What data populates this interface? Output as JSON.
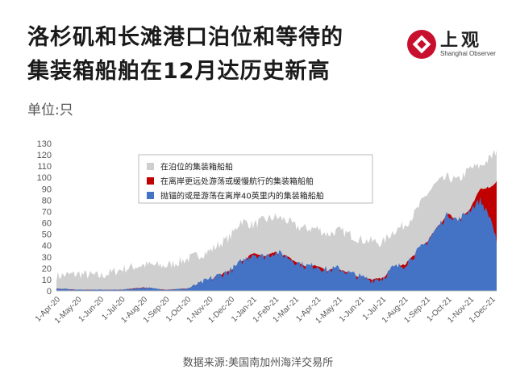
{
  "title_line1": "洛杉矶和长滩港口泊位和等待的",
  "title_line2": "集装箱船舶在12月达历史新高",
  "unit_label": "单位:只",
  "logo": {
    "cn": "上观",
    "en": "Shanghai Observer"
  },
  "source": "数据来源:美国南加州海洋交易所",
  "colors": {
    "berth": "#cfcfcf",
    "offshore": "#c00000",
    "anchored": "#4472c4"
  },
  "chart_data": {
    "type": "area",
    "title": "",
    "xlabel": "",
    "ylabel": "单位:只",
    "ylim": [
      0,
      130
    ],
    "yticks": [
      0,
      10,
      20,
      30,
      40,
      50,
      60,
      70,
      80,
      90,
      100,
      110,
      120,
      130
    ],
    "grid": false,
    "legend_position": "top-center",
    "xticks": [
      "1-Apr-20",
      "1-May-20",
      "1-Jun-20",
      "1-Jul-20",
      "1-Aug-20",
      "1-Sep-20",
      "1-Oct-20",
      "1-Nov-20",
      "1-Dec-20",
      "1-Jan-21",
      "1-Feb-21",
      "1-Mar-21",
      "1-Apr-21",
      "1-May-21",
      "1-Jun-21",
      "1-Jul-21",
      "1-Aug-21",
      "1-Sep-21",
      "1-Oct-21",
      "1-Nov-21",
      "1-Dec-21"
    ],
    "x": [
      "2020-04-01",
      "2020-05-01",
      "2020-06-01",
      "2020-07-01",
      "2020-08-01",
      "2020-09-01",
      "2020-10-01",
      "2020-11-01",
      "2020-12-01",
      "2020-12-15",
      "2021-01-01",
      "2021-01-15",
      "2021-02-01",
      "2021-02-15",
      "2021-03-01",
      "2021-03-15",
      "2021-04-01",
      "2021-04-15",
      "2021-05-01",
      "2021-05-15",
      "2021-06-01",
      "2021-06-15",
      "2021-07-01",
      "2021-07-15",
      "2021-08-01",
      "2021-08-15",
      "2021-09-01",
      "2021-09-15",
      "2021-10-01",
      "2021-10-15",
      "2021-11-01",
      "2021-11-15",
      "2021-12-01",
      "2021-12-08"
    ],
    "series": [
      {
        "name": "在泊位的集装箱船舶",
        "values": [
          13,
          15,
          13,
          19,
          23,
          22,
          28,
          35,
          48,
          62,
          58,
          62,
          65,
          63,
          57,
          55,
          55,
          50,
          53,
          50,
          45,
          44,
          42,
          52,
          58,
          68,
          85,
          95,
          100,
          97,
          108,
          110,
          118,
          124
        ]
      },
      {
        "name": "在离岸更远处游荡或缓慢航行的集装箱船舶",
        "values": [
          0,
          0,
          0,
          0,
          0,
          0,
          0,
          0,
          0,
          0,
          0,
          0,
          0,
          0,
          0,
          0,
          0,
          0,
          0,
          0,
          0,
          0,
          0,
          0,
          0,
          0,
          0,
          0,
          0,
          0,
          0,
          10,
          30,
          55
        ]
      },
      {
        "name": "抛锚的或是游荡在离岸40英里内的集装箱船舶",
        "values": [
          2,
          1,
          1,
          1,
          3,
          1,
          2,
          10,
          18,
          25,
          33,
          30,
          34,
          31,
          26,
          22,
          22,
          18,
          20,
          16,
          12,
          10,
          11,
          20,
          23,
          32,
          43,
          55,
          68,
          62,
          72,
          80,
          62,
          42
        ]
      }
    ]
  }
}
